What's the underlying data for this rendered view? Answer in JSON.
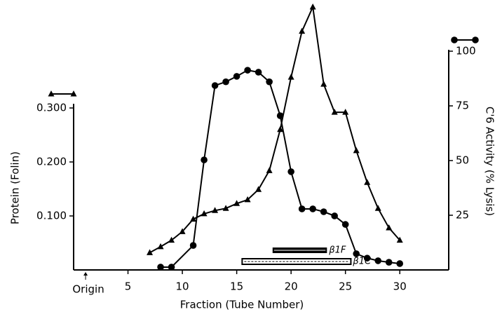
{
  "chart_data": {
    "type": "line",
    "xlabel": "Fraction (Tube Number)",
    "ylabel": "Protein (Folin)",
    "y2label": "C'6 Activity (% Lysis)",
    "xlim": [
      0,
      34.5
    ],
    "xticks": [
      5,
      10,
      15,
      20,
      25,
      30
    ],
    "ylim": [
      0,
      0.5
    ],
    "yticks": [
      {
        "value": 0.1,
        "label": "0.100"
      },
      {
        "value": 0.2,
        "label": "0.200"
      },
      {
        "value": 0.3,
        "label": "0.300"
      }
    ],
    "y2lim": [
      0,
      123.4
    ],
    "y2ticks": [
      25,
      50,
      75,
      100
    ],
    "series": [
      {
        "name": "Protein",
        "marker": "triangle",
        "color": "#000000",
        "axis": "y",
        "x": [
          7,
          8,
          9,
          10,
          11,
          12,
          13,
          14,
          15,
          16,
          17,
          18,
          19,
          20,
          21,
          22,
          23,
          24,
          25,
          26,
          27,
          28,
          29,
          30
        ],
        "values": [
          0.032,
          0.043,
          0.055,
          0.071,
          0.094,
          0.104,
          0.11,
          0.114,
          0.123,
          0.13,
          0.149,
          0.184,
          0.26,
          0.357,
          0.442,
          0.487,
          0.344,
          0.292,
          0.292,
          0.221,
          0.162,
          0.114,
          0.078,
          0.055
        ]
      },
      {
        "name": "C'6 Activity",
        "marker": "circle",
        "color": "#000000",
        "axis": "y2",
        "x": [
          8,
          9,
          11,
          12,
          13,
          14,
          15,
          16,
          17,
          18,
          19,
          20,
          21,
          22,
          23,
          24,
          25,
          26,
          27,
          28,
          29,
          30
        ],
        "values": [
          1.3,
          1.3,
          11.2,
          50.3,
          84.3,
          86,
          88.5,
          91.3,
          90.4,
          86,
          70.5,
          44.9,
          27.9,
          27.9,
          26.6,
          24.7,
          20.8,
          7.4,
          5.4,
          4.2,
          3.5,
          2.9
        ]
      }
    ],
    "bands": [
      {
        "label": "β1F",
        "start": 18.3,
        "end": 23.3,
        "style": "filled"
      },
      {
        "label": "β1C",
        "start": 15.5,
        "end": 25.5,
        "style": "open"
      }
    ],
    "annotation": {
      "text": "Origin",
      "x": 1.1
    }
  }
}
